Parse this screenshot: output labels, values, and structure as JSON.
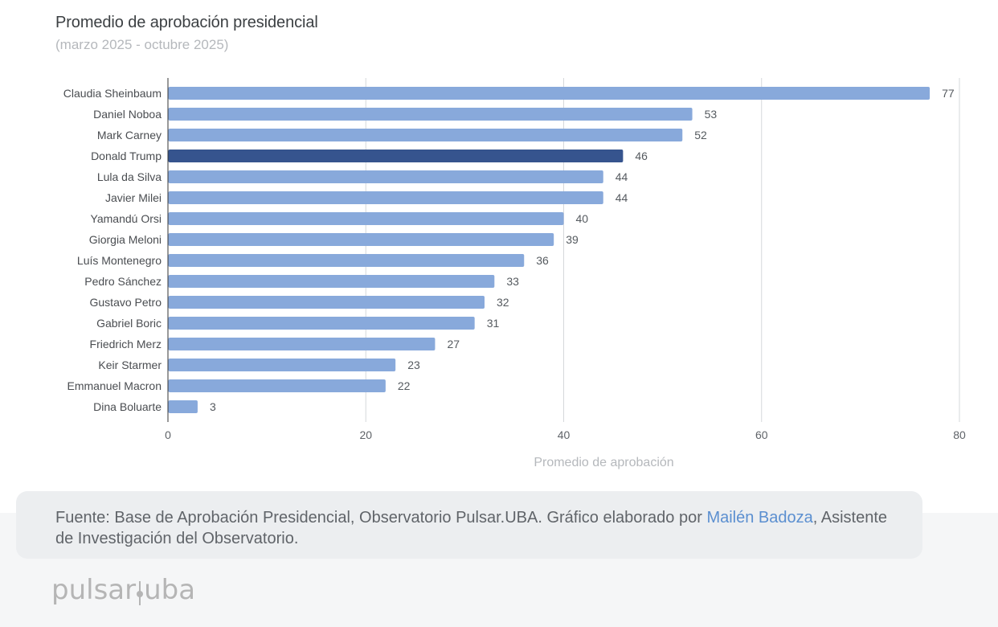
{
  "chart_data": {
    "type": "bar",
    "orientation": "horizontal",
    "title": "Promedio de aprobación presidencial",
    "subtitle": "(marzo 2025 - octubre 2025)",
    "xlabel": "Promedio de aprobación",
    "ylabel": "",
    "xlim": [
      0,
      80
    ],
    "xticks": [
      0,
      20,
      40,
      60,
      80
    ],
    "grid": true,
    "categories": [
      "Claudia Sheinbaum",
      "Daniel Noboa",
      "Mark Carney",
      "Donald Trump",
      "Lula da Silva",
      "Javier Milei",
      "Yamandú Orsi",
      "Giorgia Meloni",
      "Luís Montenegro",
      "Pedro Sánchez",
      "Gustavo Petro",
      "Gabriel Boric",
      "Friedrich Merz",
      "Keir Starmer",
      "Emmanuel Macron",
      "Dina Boluarte"
    ],
    "values": [
      77,
      53,
      52,
      46,
      44,
      44,
      40,
      39,
      36,
      33,
      32,
      31,
      27,
      23,
      22,
      3
    ],
    "highlight": "Donald Trump",
    "colors": {
      "bar": "#88a9db",
      "highlight": "#36548e",
      "grid": "#d6d8db",
      "axis": "#333333"
    }
  },
  "footer": {
    "text_before": "Fuente: Base de Aprobación Presidencial, Observatorio Pulsar.UBA. Gráfico elaborado por ",
    "author_link": "Mailén Badoza",
    "text_after": ", Asistente de Investigación del Observatorio."
  },
  "logo": {
    "left": "pulsar",
    "right": "uba"
  }
}
